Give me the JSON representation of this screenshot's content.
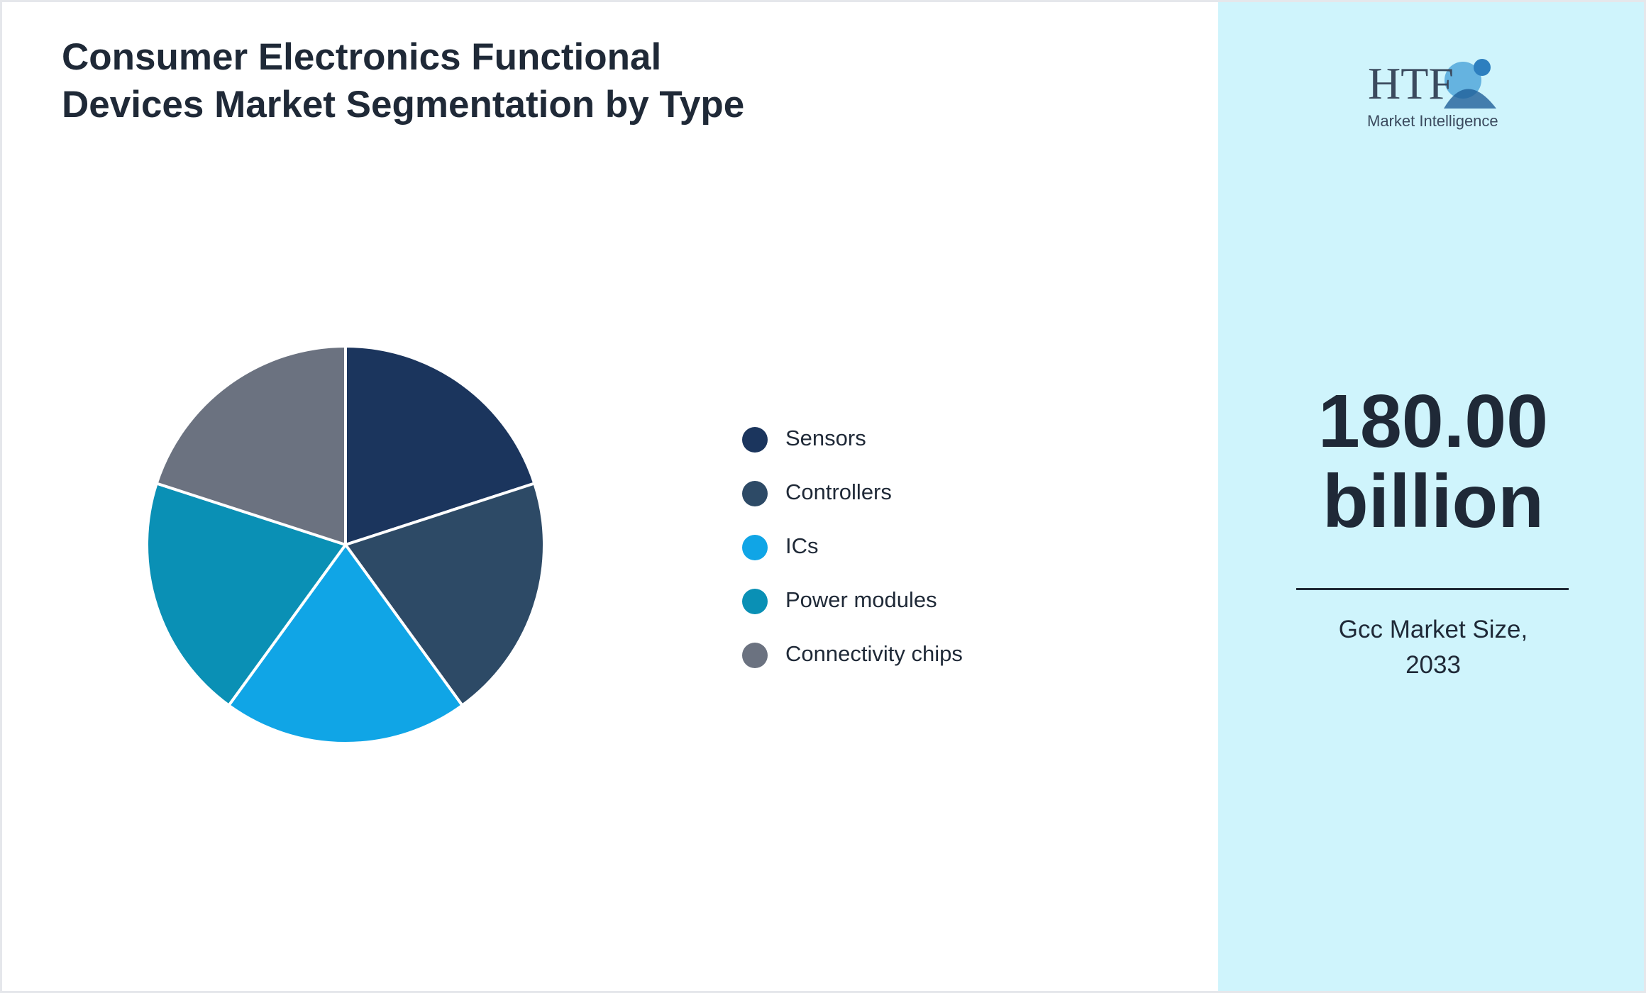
{
  "chart_data": {
    "type": "pie",
    "title": "Consumer Electronics Functional Devices Market Segmentation by Type",
    "categories": [
      "Sensors",
      "Controllers",
      "ICs",
      "Power modules",
      "Connectivity chips"
    ],
    "values": [
      20,
      20,
      20,
      20,
      20
    ],
    "colors": [
      "#1b355d",
      "#2d4a66",
      "#10a5e6",
      "#0a90b5",
      "#6b7280"
    ]
  },
  "logo": {
    "brand": "HTF",
    "tagline": "Market Intelligence"
  },
  "kpi": {
    "value": "180.00 billion",
    "label": "Gcc Market Size, 2033"
  }
}
